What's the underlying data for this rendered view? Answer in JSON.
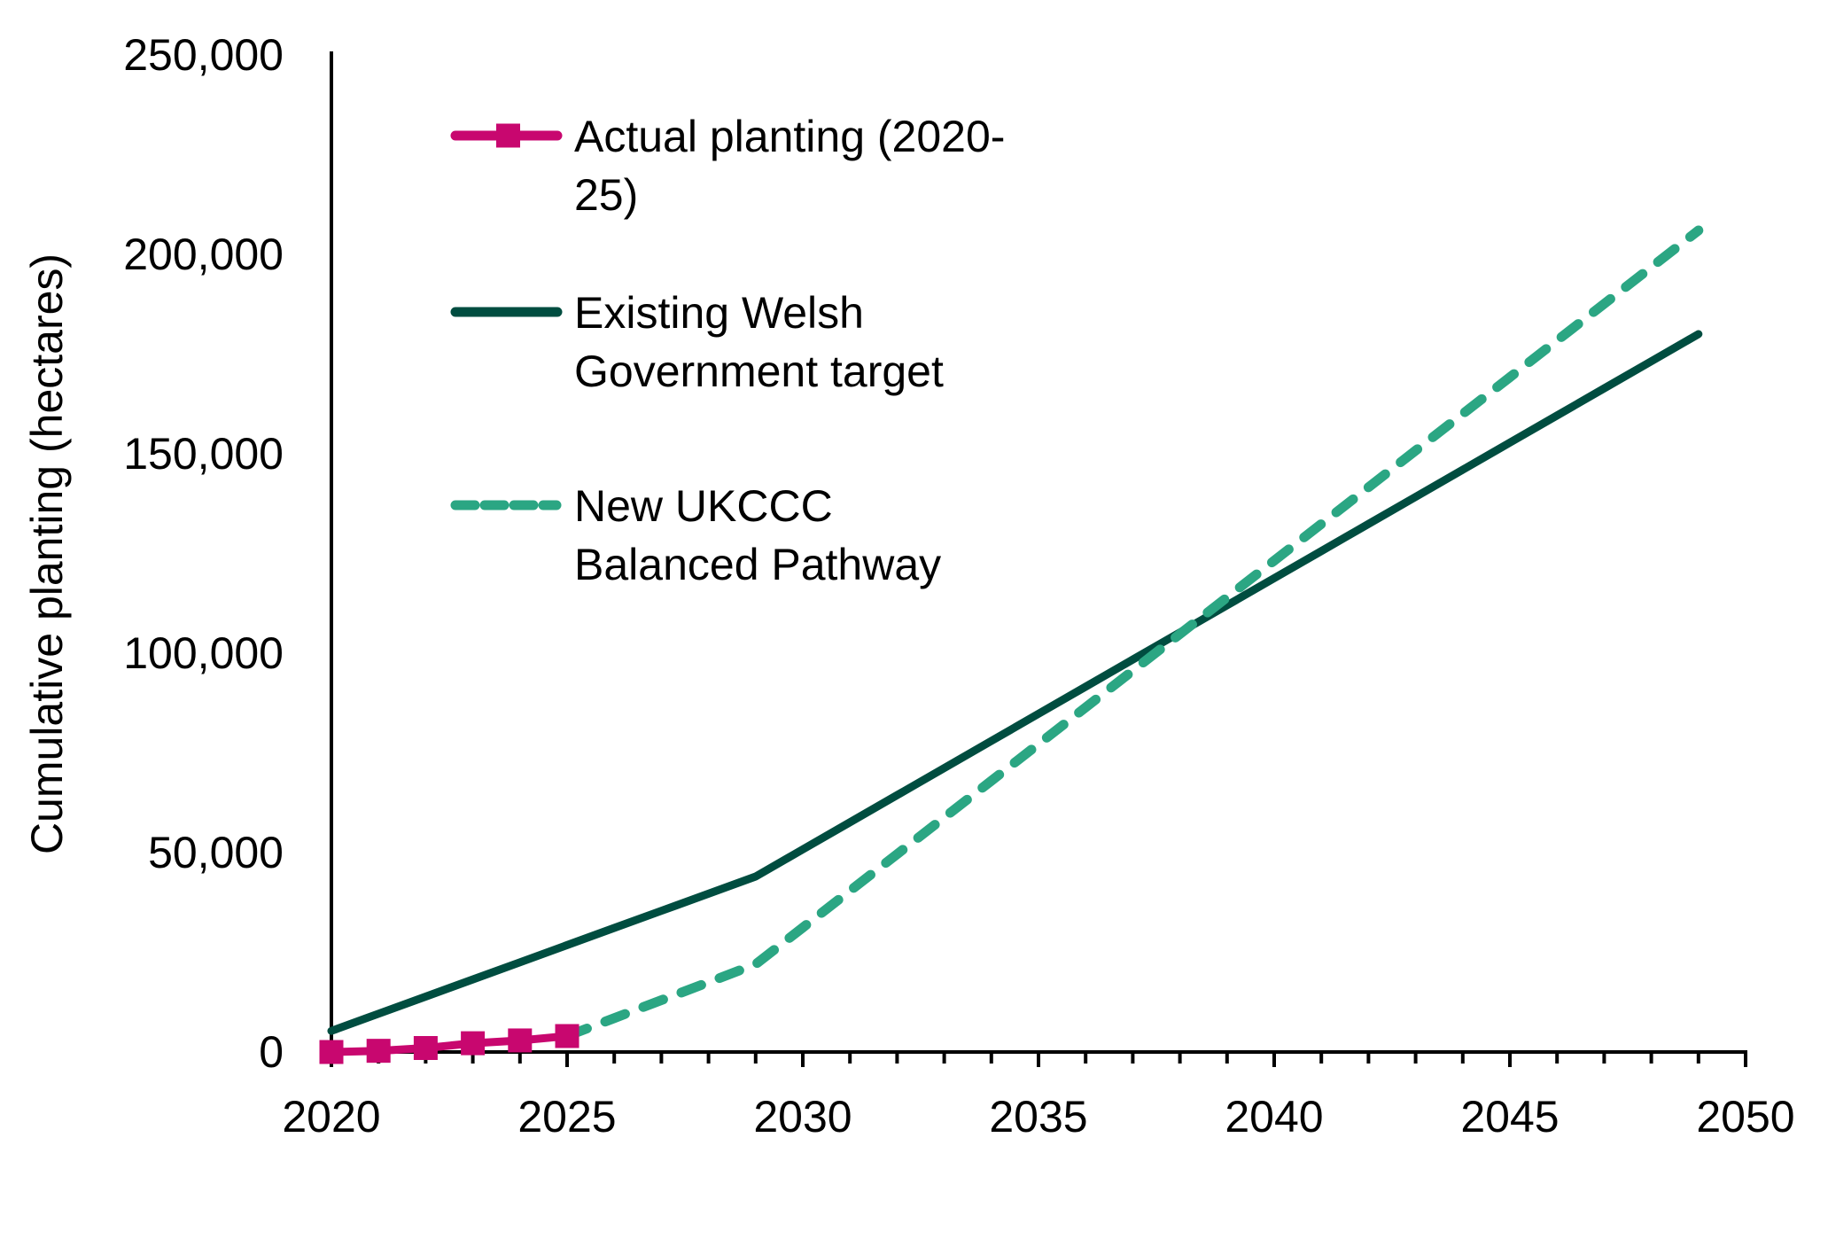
{
  "chart_data": {
    "type": "line",
    "title": "",
    "xlabel": "",
    "ylabel": "Cumulative planting (hectares)",
    "xlim": [
      2020,
      2050
    ],
    "ylim": [
      0,
      250000
    ],
    "grid": false,
    "legend_position": "top-left",
    "x_ticks": [
      2020,
      2025,
      2030,
      2035,
      2040,
      2045,
      2050
    ],
    "x_tick_labels": [
      "2020",
      "2025",
      "2030",
      "2035",
      "2040",
      "2045",
      "2050"
    ],
    "y_ticks": [
      0,
      50000,
      100000,
      150000,
      200000,
      250000
    ],
    "y_tick_labels": [
      "0",
      "50,000",
      "100,000",
      "150,000",
      "200,000",
      "250,000"
    ],
    "series": [
      {
        "name": "Actual planting (2020-25)",
        "legend_lines": [
          "Actual planting (2020-",
          "25)"
        ],
        "color": "#C8076F",
        "style": "solid-markers",
        "x": [
          2020,
          2021,
          2022,
          2023,
          2024,
          2025
        ],
        "values": [
          0,
          300,
          1000,
          2200,
          2900,
          4000
        ]
      },
      {
        "name": "Existing Welsh Government target",
        "legend_lines": [
          "Existing Welsh",
          "Government target"
        ],
        "color": "#004D40",
        "style": "solid",
        "x": [
          2020,
          2021,
          2022,
          2023,
          2024,
          2025,
          2026,
          2027,
          2028,
          2029,
          2030,
          2031,
          2032,
          2033,
          2034,
          2035,
          2036,
          2037,
          2038,
          2039,
          2040,
          2041,
          2042,
          2043,
          2044,
          2045,
          2046,
          2047,
          2048,
          2049
        ],
        "values": [
          5300,
          9600,
          13900,
          18200,
          22500,
          26800,
          31100,
          35400,
          39700,
          44000,
          50800,
          57600,
          64400,
          71200,
          78000,
          84800,
          91600,
          98400,
          105200,
          112000,
          118800,
          125600,
          132400,
          139200,
          146000,
          152800,
          159600,
          166400,
          173200,
          180000
        ]
      },
      {
        "name": "New UKCCC Balanced Pathway",
        "legend_lines": [
          "New UKCCC",
          "Balanced Pathway"
        ],
        "color": "#2BA683",
        "style": "dashed",
        "x": [
          2025,
          2026,
          2027,
          2028,
          2029,
          2030,
          2031,
          2032,
          2033,
          2034,
          2035,
          2036,
          2037,
          2038,
          2039,
          2040,
          2041,
          2042,
          2043,
          2044,
          2045,
          2046,
          2047,
          2048,
          2049
        ],
        "values": [
          4000,
          8500,
          13000,
          17500,
          22000,
          31200,
          40400,
          49600,
          58800,
          68000,
          77200,
          86400,
          95600,
          104800,
          114000,
          123200,
          132400,
          141600,
          150800,
          160000,
          169200,
          178400,
          187600,
          196800,
          206000
        ]
      }
    ]
  }
}
